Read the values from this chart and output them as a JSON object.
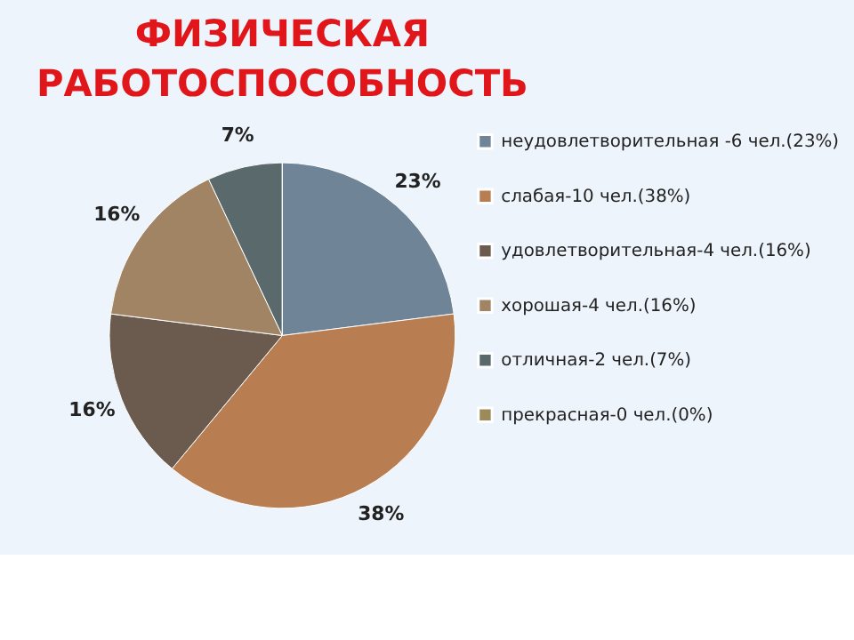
{
  "chart_data": {
    "type": "pie",
    "title": "ФИЗИЧЕСКАЯ РАБОТОСПОСОБНОСТЬ",
    "categories": [
      "неудовлетворительная -6 чел.(23%)",
      "слабая-10 чел.(38%)",
      "удовлетворительная-4 чел.(16%)",
      "хорошая-4 чел.(16%)",
      "отличная-2 чел.(7%)",
      "прекрасная-0 чел.(0%)"
    ],
    "values": [
      23,
      38,
      16,
      16,
      7,
      0
    ],
    "value_labels": [
      "23%",
      "38%",
      "16%",
      "16%",
      "7%",
      null
    ],
    "colors": [
      "#6f8597",
      "#b87d50",
      "#6b5a4e",
      "#a08464",
      "#5a6a6c",
      "#9c8a5a"
    ],
    "legend": "right"
  }
}
